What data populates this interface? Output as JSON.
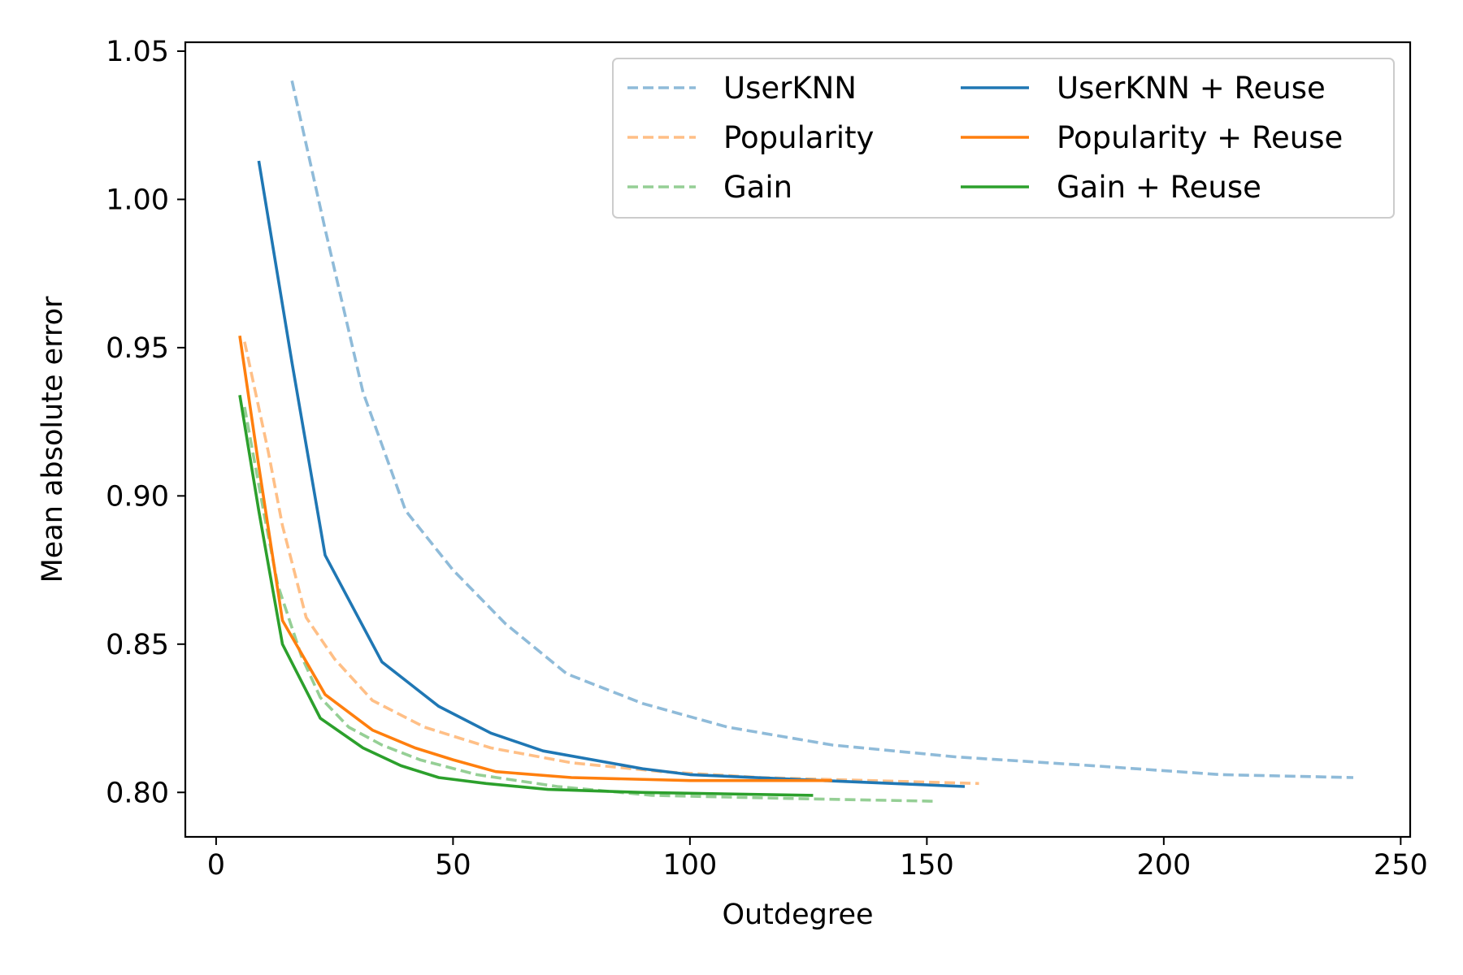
{
  "chart_data": {
    "type": "line",
    "title": "",
    "xlabel": "Outdegree",
    "ylabel": "Mean absolute error",
    "xlim": [
      -6.5,
      252
    ],
    "ylim": [
      0.785,
      1.053
    ],
    "xticks": [
      0,
      50,
      100,
      150,
      200,
      250
    ],
    "yticks": [
      0.8,
      0.85,
      0.9,
      0.95,
      1.0,
      1.05
    ],
    "xtick_labels": [
      "0",
      "50",
      "100",
      "150",
      "200",
      "250"
    ],
    "ytick_labels": [
      "0.80",
      "0.85",
      "0.90",
      "0.95",
      "1.00",
      "1.05"
    ],
    "grid": false,
    "legend": {
      "position": "top-right",
      "columns": 2
    },
    "series": [
      {
        "name": "UserKNN",
        "color": "#1f77b4",
        "style": "dashed",
        "opacity": 0.5,
        "points": [
          [
            16,
            1.04
          ],
          [
            23,
            0.99
          ],
          [
            31,
            0.935
          ],
          [
            40,
            0.895
          ],
          [
            50,
            0.875
          ],
          [
            61,
            0.857
          ],
          [
            74,
            0.84
          ],
          [
            90,
            0.83
          ],
          [
            108,
            0.822
          ],
          [
            130,
            0.816
          ],
          [
            156,
            0.812
          ],
          [
            185,
            0.809
          ],
          [
            212,
            0.806
          ],
          [
            240,
            0.805
          ]
        ]
      },
      {
        "name": "Popularity",
        "color": "#ff7f0e",
        "style": "dashed",
        "opacity": 0.5,
        "points": [
          [
            6,
            0.952
          ],
          [
            11,
            0.915
          ],
          [
            14,
            0.89
          ],
          [
            19,
            0.859
          ],
          [
            25,
            0.845
          ],
          [
            33,
            0.831
          ],
          [
            44,
            0.822
          ],
          [
            58,
            0.815
          ],
          [
            75,
            0.81
          ],
          [
            94,
            0.807
          ],
          [
            115,
            0.805
          ],
          [
            138,
            0.804
          ],
          [
            161,
            0.803
          ]
        ]
      },
      {
        "name": "Gain",
        "color": "#2ca02c",
        "style": "dashed",
        "opacity": 0.5,
        "points": [
          [
            6,
            0.93
          ],
          [
            10,
            0.895
          ],
          [
            13,
            0.87
          ],
          [
            18,
            0.846
          ],
          [
            22,
            0.832
          ],
          [
            28,
            0.822
          ],
          [
            35,
            0.816
          ],
          [
            43,
            0.811
          ],
          [
            55,
            0.806
          ],
          [
            72,
            0.802
          ],
          [
            92,
            0.799
          ],
          [
            120,
            0.798
          ],
          [
            152,
            0.797
          ]
        ]
      },
      {
        "name": "UserKNN + Reuse",
        "color": "#1f77b4",
        "style": "solid",
        "opacity": 1,
        "points": [
          [
            9,
            1.013
          ],
          [
            16,
            0.945
          ],
          [
            23,
            0.88
          ],
          [
            35,
            0.844
          ],
          [
            47,
            0.829
          ],
          [
            58,
            0.82
          ],
          [
            69,
            0.814
          ],
          [
            90,
            0.808
          ],
          [
            100,
            0.806
          ],
          [
            128,
            0.804
          ],
          [
            158,
            0.802
          ]
        ]
      },
      {
        "name": "Popularity + Reuse",
        "color": "#ff7f0e",
        "style": "solid",
        "opacity": 1,
        "points": [
          [
            5,
            0.954
          ],
          [
            9,
            0.91
          ],
          [
            14,
            0.858
          ],
          [
            23,
            0.833
          ],
          [
            33,
            0.821
          ],
          [
            42,
            0.815
          ],
          [
            50,
            0.811
          ],
          [
            59,
            0.807
          ],
          [
            75,
            0.805
          ],
          [
            100,
            0.804
          ],
          [
            130,
            0.804
          ]
        ]
      },
      {
        "name": "Gain + Reuse",
        "color": "#2ca02c",
        "style": "solid",
        "opacity": 1,
        "points": [
          [
            5,
            0.934
          ],
          [
            9,
            0.895
          ],
          [
            14,
            0.85
          ],
          [
            22,
            0.825
          ],
          [
            31,
            0.815
          ],
          [
            39,
            0.809
          ],
          [
            47,
            0.805
          ],
          [
            57,
            0.803
          ],
          [
            70,
            0.801
          ],
          [
            90,
            0.8
          ],
          [
            126,
            0.799
          ]
        ]
      }
    ]
  }
}
